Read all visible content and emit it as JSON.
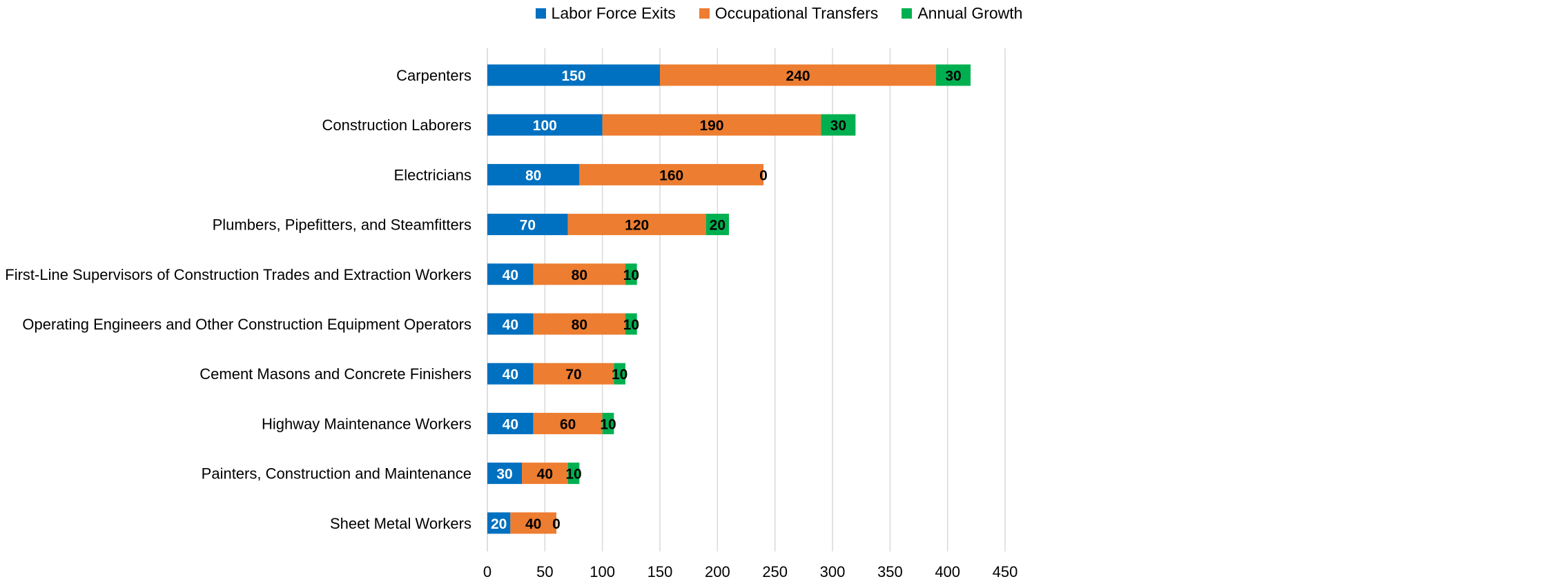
{
  "chart_data": {
    "type": "bar",
    "orientation": "horizontal",
    "stacked": true,
    "categories": [
      "Carpenters",
      "Construction Laborers",
      "Electricians",
      "Plumbers, Pipefitters, and Steamfitters",
      "First-Line Supervisors of Construction Trades and Extraction Workers",
      "Operating Engineers and Other Construction Equipment Operators",
      "Cement Masons and Concrete Finishers",
      "Highway Maintenance Workers",
      "Painters, Construction and Maintenance",
      "Sheet Metal Workers"
    ],
    "series": [
      {
        "name": "Labor Force Exits",
        "color": "#0070C0",
        "label_color": "#ffffff",
        "values": [
          150,
          100,
          80,
          70,
          40,
          40,
          40,
          40,
          30,
          20
        ]
      },
      {
        "name": "Occupational Transfers",
        "color": "#ED7D31",
        "label_color": "#000000",
        "values": [
          240,
          190,
          160,
          120,
          80,
          80,
          70,
          60,
          40,
          40
        ]
      },
      {
        "name": "Annual Growth",
        "color": "#00B050",
        "label_color": "#000000",
        "values": [
          30,
          30,
          0,
          20,
          10,
          10,
          10,
          10,
          10,
          0
        ]
      }
    ],
    "xlim": [
      0,
      450
    ],
    "xticks": [
      0,
      50,
      100,
      150,
      200,
      250,
      300,
      350,
      400,
      450
    ],
    "grid": "vertical",
    "legend_position": "top-center",
    "title": "",
    "xlabel": "",
    "ylabel": ""
  }
}
